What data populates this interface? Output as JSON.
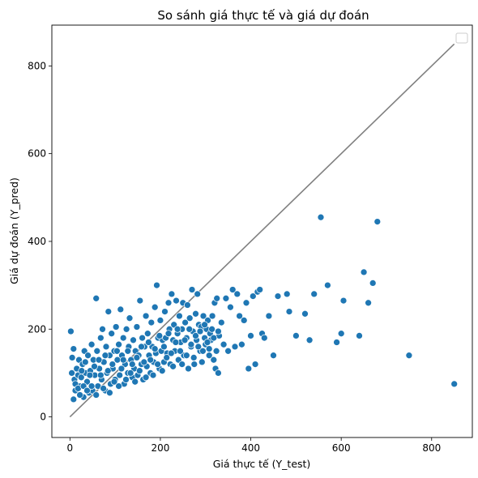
{
  "chart_data": {
    "type": "scatter",
    "title": "So sánh giá thực tế và giá dự đoán",
    "xlabel": "Giá thực tế (Y_test)",
    "ylabel": "Giá dự đoán (Y_pred)",
    "xlim": [
      -40,
      890
    ],
    "ylim": [
      -47,
      893
    ],
    "xticks": [
      0,
      200,
      400,
      600,
      800
    ],
    "yticks": [
      0,
      200,
      400,
      600,
      800
    ],
    "grid": false,
    "legend": "top-right (empty)",
    "colors": {
      "points": "#1f77b4",
      "point_edge": "#ffffff",
      "reference_line": "#808080"
    },
    "reference_line": {
      "x": [
        0,
        850
      ],
      "y": [
        0,
        850
      ]
    },
    "series": [
      {
        "points": [
          [
            2,
            195
          ],
          [
            5,
            135
          ],
          [
            8,
            155
          ],
          [
            4,
            100
          ],
          [
            10,
            85
          ],
          [
            12,
            60
          ],
          [
            15,
            110
          ],
          [
            18,
            95
          ],
          [
            20,
            130
          ],
          [
            22,
            70
          ],
          [
            25,
            90
          ],
          [
            28,
            120
          ],
          [
            30,
            45
          ],
          [
            32,
            150
          ],
          [
            35,
            100
          ],
          [
            38,
            80
          ],
          [
            40,
            140
          ],
          [
            42,
            55
          ],
          [
            45,
            105
          ],
          [
            48,
            165
          ],
          [
            50,
            60
          ],
          [
            52,
            130
          ],
          [
            55,
            95
          ],
          [
            58,
            270
          ],
          [
            60,
            150
          ],
          [
            62,
            70
          ],
          [
            65,
            110
          ],
          [
            68,
            180
          ],
          [
            70,
            85
          ],
          [
            72,
            200
          ],
          [
            75,
            125
          ],
          [
            78,
            60
          ],
          [
            80,
            160
          ],
          [
            82,
            100
          ],
          [
            85,
            240
          ],
          [
            88,
            140
          ],
          [
            90,
            75
          ],
          [
            92,
            190
          ],
          [
            95,
            110
          ],
          [
            98,
            150
          ],
          [
            100,
            85
          ],
          [
            102,
            205
          ],
          [
            105,
            130
          ],
          [
            108,
            165
          ],
          [
            110,
            95
          ],
          [
            112,
            245
          ],
          [
            115,
            140
          ],
          [
            118,
            180
          ],
          [
            120,
            75
          ],
          [
            122,
            120
          ],
          [
            125,
            200
          ],
          [
            128,
            100
          ],
          [
            130,
            160
          ],
          [
            132,
            225
          ],
          [
            135,
            130
          ],
          [
            138,
            90
          ],
          [
            140,
            175
          ],
          [
            142,
            110
          ],
          [
            145,
            150
          ],
          [
            148,
            205
          ],
          [
            150,
            95
          ],
          [
            152,
            140
          ],
          [
            155,
            265
          ],
          [
            158,
            120
          ],
          [
            160,
            180
          ],
          [
            162,
            85
          ],
          [
            165,
            160
          ],
          [
            168,
            230
          ],
          [
            170,
            115
          ],
          [
            172,
            190
          ],
          [
            175,
            140
          ],
          [
            178,
            100
          ],
          [
            180,
            215
          ],
          [
            182,
            160
          ],
          [
            185,
            125
          ],
          [
            188,
            250
          ],
          [
            190,
            145
          ],
          [
            192,
            300
          ],
          [
            195,
            180
          ],
          [
            198,
            110
          ],
          [
            200,
            220
          ],
          [
            202,
            150
          ],
          [
            205,
            175
          ],
          [
            208,
            125
          ],
          [
            210,
            240
          ],
          [
            212,
            180
          ],
          [
            215,
            145
          ],
          [
            218,
            260
          ],
          [
            220,
            200
          ],
          [
            222,
            120
          ],
          [
            225,
            280
          ],
          [
            228,
            175
          ],
          [
            230,
            210
          ],
          [
            232,
            150
          ],
          [
            235,
            265
          ],
          [
            238,
            190
          ],
          [
            240,
            130
          ],
          [
            242,
            230
          ],
          [
            245,
            170
          ],
          [
            248,
            200
          ],
          [
            250,
            260
          ],
          [
            252,
            140
          ],
          [
            255,
            215
          ],
          [
            258,
            180
          ],
          [
            260,
            255
          ],
          [
            262,
            110
          ],
          [
            265,
            225
          ],
          [
            268,
            160
          ],
          [
            270,
            290
          ],
          [
            272,
            195
          ],
          [
            275,
            120
          ],
          [
            278,
            235
          ],
          [
            280,
            175
          ],
          [
            282,
            280
          ],
          [
            285,
            210
          ],
          [
            288,
            150
          ],
          [
            290,
            205
          ],
          [
            292,
            125
          ],
          [
            295,
            230
          ],
          [
            298,
            180
          ],
          [
            300,
            165
          ],
          [
            302,
            200
          ],
          [
            305,
            220
          ],
          [
            308,
            140
          ],
          [
            310,
            190
          ],
          [
            312,
            175
          ],
          [
            315,
            230
          ],
          [
            318,
            130
          ],
          [
            320,
            260
          ],
          [
            322,
            110
          ],
          [
            325,
            270
          ],
          [
            328,
            100
          ],
          [
            330,
            185
          ],
          [
            335,
            215
          ],
          [
            340,
            165
          ],
          [
            345,
            270
          ],
          [
            350,
            150
          ],
          [
            355,
            250
          ],
          [
            360,
            290
          ],
          [
            365,
            160
          ],
          [
            370,
            280
          ],
          [
            375,
            230
          ],
          [
            380,
            165
          ],
          [
            385,
            220
          ],
          [
            390,
            260
          ],
          [
            395,
            110
          ],
          [
            400,
            185
          ],
          [
            405,
            275
          ],
          [
            410,
            120
          ],
          [
            415,
            285
          ],
          [
            420,
            290
          ],
          [
            425,
            190
          ],
          [
            430,
            180
          ],
          [
            440,
            230
          ],
          [
            450,
            140
          ],
          [
            460,
            275
          ],
          [
            480,
            280
          ],
          [
            485,
            240
          ],
          [
            500,
            185
          ],
          [
            520,
            235
          ],
          [
            530,
            175
          ],
          [
            540,
            280
          ],
          [
            555,
            455
          ],
          [
            570,
            300
          ],
          [
            590,
            170
          ],
          [
            600,
            190
          ],
          [
            605,
            265
          ],
          [
            640,
            185
          ],
          [
            650,
            330
          ],
          [
            660,
            260
          ],
          [
            670,
            305
          ],
          [
            680,
            445
          ],
          [
            750,
            140
          ],
          [
            850,
            75
          ],
          [
            8,
            40
          ],
          [
            12,
            75
          ],
          [
            18,
            65
          ],
          [
            22,
            50
          ],
          [
            26,
            105
          ],
          [
            30,
            70
          ],
          [
            34,
            125
          ],
          [
            38,
            60
          ],
          [
            44,
            95
          ],
          [
            48,
            70
          ],
          [
            54,
            115
          ],
          [
            58,
            50
          ],
          [
            64,
            130
          ],
          [
            68,
            95
          ],
          [
            74,
            65
          ],
          [
            78,
            140
          ],
          [
            84,
            105
          ],
          [
            88,
            55
          ],
          [
            94,
            120
          ],
          [
            98,
            80
          ],
          [
            104,
            150
          ],
          [
            108,
            70
          ],
          [
            114,
            110
          ],
          [
            118,
            130
          ],
          [
            124,
            85
          ],
          [
            128,
            150
          ],
          [
            134,
            100
          ],
          [
            138,
            120
          ],
          [
            144,
            80
          ],
          [
            148,
            135
          ],
          [
            154,
            105
          ],
          [
            158,
            160
          ],
          [
            164,
            125
          ],
          [
            168,
            90
          ],
          [
            174,
            170
          ],
          [
            178,
            130
          ],
          [
            184,
            95
          ],
          [
            188,
            155
          ],
          [
            194,
            120
          ],
          [
            198,
            185
          ],
          [
            204,
            105
          ],
          [
            208,
            160
          ],
          [
            214,
            135
          ],
          [
            218,
            190
          ],
          [
            224,
            145
          ],
          [
            228,
            115
          ],
          [
            234,
            170
          ],
          [
            238,
            200
          ],
          [
            244,
            150
          ],
          [
            248,
            120
          ],
          [
            254,
            175
          ],
          [
            258,
            140
          ],
          [
            264,
            200
          ],
          [
            268,
            165
          ],
          [
            274,
            135
          ],
          [
            278,
            185
          ],
          [
            284,
            160
          ],
          [
            288,
            195
          ],
          [
            294,
            150
          ],
          [
            298,
            210
          ],
          [
            304,
            170
          ],
          [
            308,
            155
          ],
          [
            314,
            200
          ],
          [
            318,
            180
          ],
          [
            324,
            150
          ],
          [
            328,
            195
          ]
        ]
      }
    ]
  }
}
